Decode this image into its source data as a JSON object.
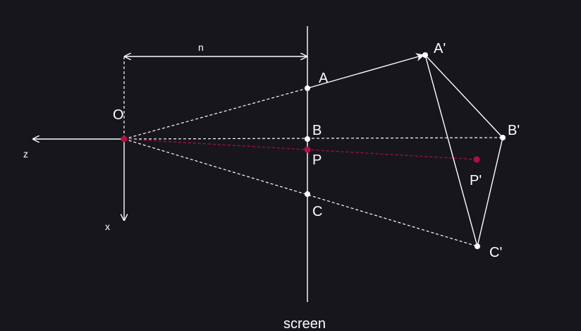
{
  "colors": {
    "background": "#18161d",
    "foreground": "#ffffff",
    "accent": "#b0103f"
  },
  "labels": {
    "origin": "O",
    "axis_z": "z",
    "axis_x": "x",
    "distance": "n",
    "screen": "screen",
    "point_a": "A",
    "point_b": "B",
    "point_c": "C",
    "point_p": "P",
    "point_a_prime": "A'",
    "point_b_prime": "B'",
    "point_c_prime": "C'",
    "point_p_prime": "P'"
  }
}
